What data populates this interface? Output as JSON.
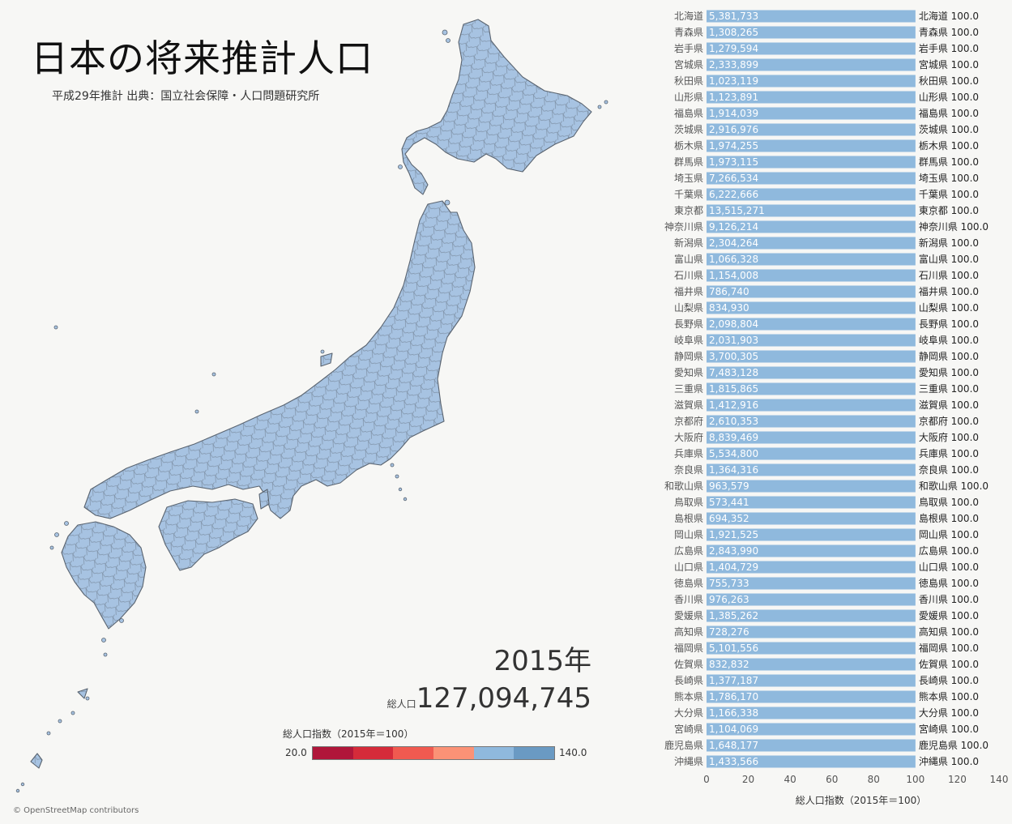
{
  "title": "日本の将来推計人口",
  "subtitle": "平成29年推計 出典：国立社会保障・人口問題研究所",
  "year_label": "2015年",
  "total": {
    "label": "総人口",
    "value": "127,094,745"
  },
  "legend": {
    "title": "総人口指数（2015年＝100）",
    "min": "20.0",
    "max": "140.0",
    "colors": [
      "#b0163a",
      "#d52b3a",
      "#f05a50",
      "#fb9276",
      "#8fb9dd",
      "#6a9ac3"
    ]
  },
  "map": {
    "fill_color": "#a7c3e2",
    "stroke_color": "#5a6470"
  },
  "attribution": "© OpenStreetMap contributors",
  "chart_data": {
    "type": "bar",
    "orientation": "horizontal",
    "categories": [
      "北海道",
      "青森県",
      "岩手県",
      "宮城県",
      "秋田県",
      "山形県",
      "福島県",
      "茨城県",
      "栃木県",
      "群馬県",
      "埼玉県",
      "千葉県",
      "東京都",
      "神奈川県",
      "新潟県",
      "富山県",
      "石川県",
      "福井県",
      "山梨県",
      "長野県",
      "岐阜県",
      "静岡県",
      "愛知県",
      "三重県",
      "滋賀県",
      "京都府",
      "大阪府",
      "兵庫県",
      "奈良県",
      "和歌山県",
      "鳥取県",
      "島根県",
      "岡山県",
      "広島県",
      "山口県",
      "徳島県",
      "香川県",
      "愛媛県",
      "高知県",
      "福岡県",
      "佐賀県",
      "長崎県",
      "熊本県",
      "大分県",
      "宮崎県",
      "鹿児島県",
      "沖縄県"
    ],
    "series": [
      {
        "values": [
          100.0,
          100.0,
          100.0,
          100.0,
          100.0,
          100.0,
          100.0,
          100.0,
          100.0,
          100.0,
          100.0,
          100.0,
          100.0,
          100.0,
          100.0,
          100.0,
          100.0,
          100.0,
          100.0,
          100.0,
          100.0,
          100.0,
          100.0,
          100.0,
          100.0,
          100.0,
          100.0,
          100.0,
          100.0,
          100.0,
          100.0,
          100.0,
          100.0,
          100.0,
          100.0,
          100.0,
          100.0,
          100.0,
          100.0,
          100.0,
          100.0,
          100.0,
          100.0,
          100.0,
          100.0,
          100.0,
          100.0
        ]
      }
    ],
    "population_labels": [
      "5,381,733",
      "1,308,265",
      "1,279,594",
      "2,333,899",
      "1,023,119",
      "1,123,891",
      "1,914,039",
      "2,916,976",
      "1,974,255",
      "1,973,115",
      "7,266,534",
      "6,222,666",
      "13,515,271",
      "9,126,214",
      "2,304,264",
      "1,066,328",
      "1,154,008",
      "786,740",
      "834,930",
      "2,098,804",
      "2,031,903",
      "3,700,305",
      "7,483,128",
      "1,815,865",
      "1,412,916",
      "2,610,353",
      "8,839,469",
      "5,534,800",
      "1,364,316",
      "963,579",
      "573,441",
      "694,352",
      "1,921,525",
      "2,843,990",
      "1,404,729",
      "755,733",
      "976,263",
      "1,385,262",
      "728,276",
      "5,101,556",
      "832,832",
      "1,377,187",
      "1,786,170",
      "1,166,338",
      "1,104,069",
      "1,648,177",
      "1,433,566"
    ],
    "value_labels": [
      "100.0",
      "100.0",
      "100.0",
      "100.0",
      "100.0",
      "100.0",
      "100.0",
      "100.0",
      "100.0",
      "100.0",
      "100.0",
      "100.0",
      "100.0",
      "100.0",
      "100.0",
      "100.0",
      "100.0",
      "100.0",
      "100.0",
      "100.0",
      "100.0",
      "100.0",
      "100.0",
      "100.0",
      "100.0",
      "100.0",
      "100.0",
      "100.0",
      "100.0",
      "100.0",
      "100.0",
      "100.0",
      "100.0",
      "100.0",
      "100.0",
      "100.0",
      "100.0",
      "100.0",
      "100.0",
      "100.0",
      "100.0",
      "100.0",
      "100.0",
      "100.0",
      "100.0",
      "100.0",
      "100.0"
    ],
    "xlabel": "総人口指数（2015年＝100）",
    "xlim": [
      0,
      140
    ],
    "xticks": [
      "0",
      "20",
      "40",
      "60",
      "80",
      "100",
      "120",
      "140"
    ],
    "bar_color": "#8fb9dd",
    "grid": false
  }
}
